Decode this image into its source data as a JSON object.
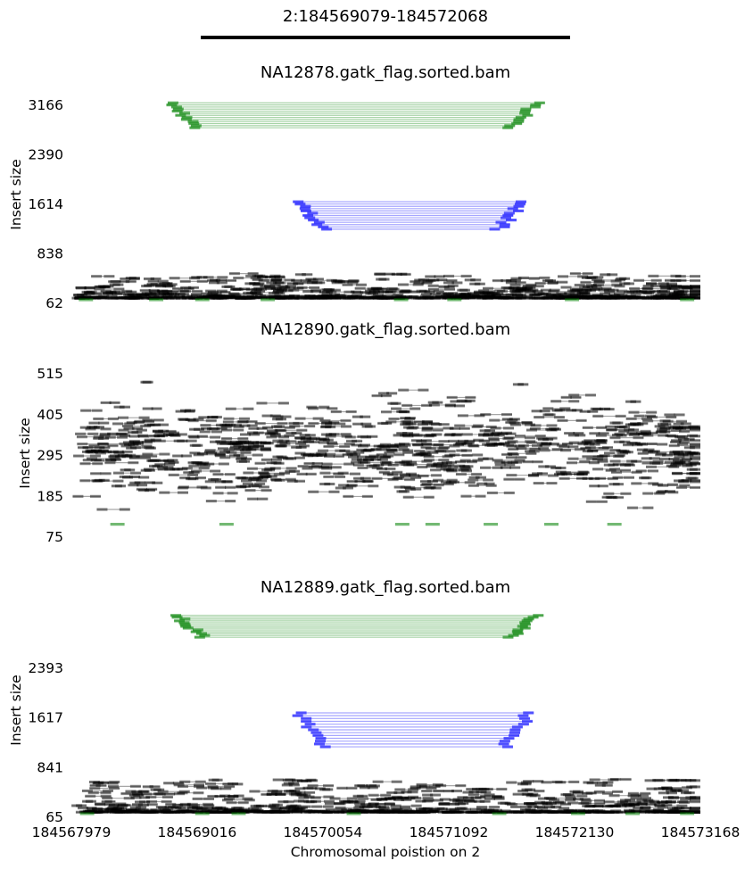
{
  "figure": {
    "title": "2:184569079-184572068",
    "xlabel": "Chromosomal poistion on 2",
    "region": [
      184569079,
      184572068
    ],
    "xlim": [
      184567979,
      184573168
    ],
    "xticks": [
      "184567979",
      "184569016",
      "184570054",
      "184571092",
      "184572130",
      "184573168"
    ],
    "colors": {
      "concordant": "#000000",
      "deletion": "#0000ff",
      "duplication": "#008000",
      "region_bar": "#000000"
    }
  },
  "chart_data": [
    {
      "type": "scatter",
      "title": "NA12878.gatk_flag.sorted.bam",
      "ylabel": "Insert size",
      "yticks": [
        "62",
        "838",
        "1614",
        "2390",
        "3166"
      ],
      "ylim": [
        62,
        3166
      ],
      "series": [
        {
          "kind": "concordant",
          "color": "#000000",
          "x_range": [
            184567979,
            184573168
          ],
          "insert_size_range": [
            130,
            520
          ]
        },
        {
          "kind": "deletion",
          "color": "#0000ff",
          "x_range": [
            184569800,
            184571750
          ],
          "insert_size_range": [
            1210,
            1640
          ]
        },
        {
          "kind": "duplication",
          "color": "#008000",
          "x_range": [
            184568750,
            184571850
          ],
          "insert_size_range": [
            2800,
            3190
          ]
        },
        {
          "kind": "split",
          "color": "#008000",
          "x": [
            184568040,
            184568620,
            184569000,
            184569540,
            184570640,
            184571080,
            184572050,
            184573000
          ],
          "insert_size": 62
        }
      ]
    },
    {
      "type": "scatter",
      "title": "NA12890.gatk_flag.sorted.bam",
      "ylabel": "Insert size",
      "yticks": [
        "75",
        "185",
        "295",
        "405",
        "515"
      ],
      "ylim": [
        75,
        515
      ],
      "series": [
        {
          "kind": "concordant",
          "color": "#000000",
          "x_range": [
            184567979,
            184573168
          ],
          "insert_size_range": [
            110,
            505
          ]
        },
        {
          "kind": "split",
          "color": "#008000",
          "x": [
            184568300,
            184569200,
            184570650,
            184570900,
            184571380,
            184571880,
            184572400
          ],
          "insert_size": 100
        }
      ]
    },
    {
      "type": "scatter",
      "title": "NA12889.gatk_flag.sorted.bam",
      "ylabel": "Insert size",
      "yticks": [
        "65",
        "841",
        "1617",
        "2393"
      ],
      "ylim": [
        65,
        3169
      ],
      "series": [
        {
          "kind": "concordant",
          "color": "#000000",
          "x_range": [
            184567979,
            184573168
          ],
          "insert_size_range": [
            130,
            650
          ]
        },
        {
          "kind": "deletion",
          "color": "#0000ff",
          "x_range": [
            184569800,
            184571800
          ],
          "insert_size_range": [
            1150,
            1680
          ]
        },
        {
          "kind": "duplication",
          "color": "#008000",
          "x_range": [
            184568800,
            184571850
          ],
          "insert_size_range": [
            2860,
            3200
          ]
        },
        {
          "kind": "split",
          "color": "#008000",
          "x": [
            184568050,
            184569000,
            184569300,
            184570250,
            184571450,
            184572100,
            184572550,
            184573000
          ],
          "insert_size": 65
        }
      ]
    }
  ]
}
